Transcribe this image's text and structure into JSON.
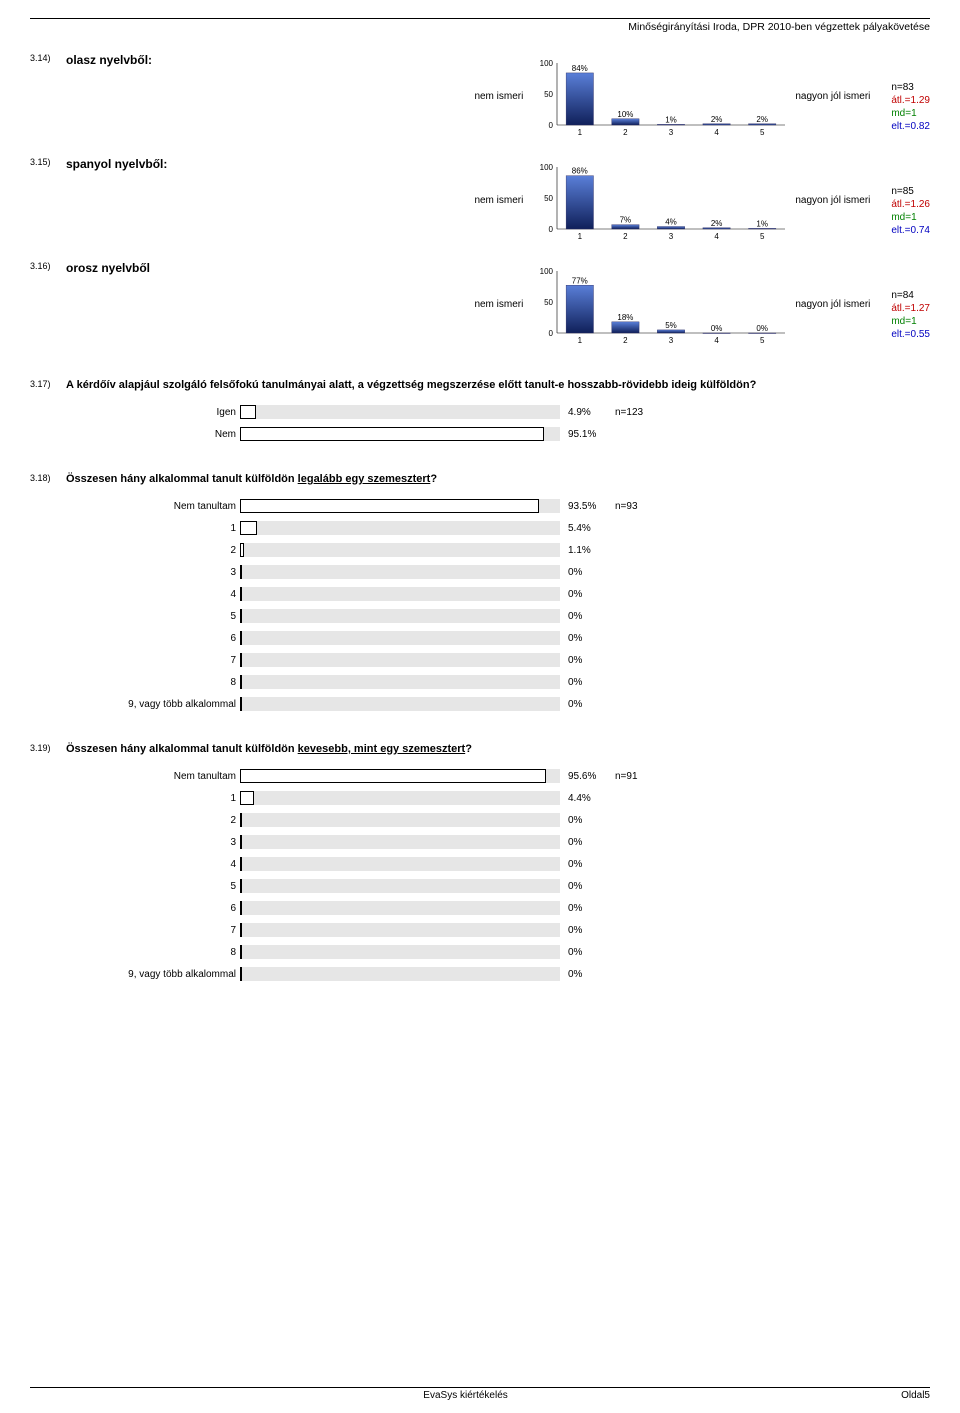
{
  "header": {
    "title": "Minőségirányítási Iroda, DPR 2010-ben végzettek pályakövetése"
  },
  "vertical_charts": [
    {
      "qnum": "3.14)",
      "title": "olasz nyelvből:",
      "left_label": "nem ismeri",
      "right_label": "nagyon jól ismeri",
      "bars": [
        {
          "x": "1",
          "pct": 84,
          "label": "84%"
        },
        {
          "x": "2",
          "pct": 10,
          "label": "10%"
        },
        {
          "x": "3",
          "pct": 1,
          "label": "1%"
        },
        {
          "x": "4",
          "pct": 2,
          "label": "2%"
        },
        {
          "x": "5",
          "pct": 2,
          "label": "2%"
        }
      ],
      "stats": {
        "n": "n=83",
        "atl": "átl.=1.29",
        "md": "md=1",
        "elt": "elt.=0.82"
      }
    },
    {
      "qnum": "3.15)",
      "title": "spanyol nyelvből:",
      "left_label": "nem ismeri",
      "right_label": "nagyon jól ismeri",
      "bars": [
        {
          "x": "1",
          "pct": 86,
          "label": "86%"
        },
        {
          "x": "2",
          "pct": 7,
          "label": "7%"
        },
        {
          "x": "3",
          "pct": 4,
          "label": "4%"
        },
        {
          "x": "4",
          "pct": 2,
          "label": "2%"
        },
        {
          "x": "5",
          "pct": 1,
          "label": "1%"
        }
      ],
      "stats": {
        "n": "n=85",
        "atl": "átl.=1.26",
        "md": "md=1",
        "elt": "elt.=0.74"
      }
    },
    {
      "qnum": "3.16)",
      "title": "orosz nyelvből",
      "left_label": "nem ismeri",
      "right_label": "nagyon jól ismeri",
      "bars": [
        {
          "x": "1",
          "pct": 77,
          "label": "77%"
        },
        {
          "x": "2",
          "pct": 18,
          "label": "18%"
        },
        {
          "x": "3",
          "pct": 5,
          "label": "5%"
        },
        {
          "x": "4",
          "pct": 0,
          "label": "0%"
        },
        {
          "x": "5",
          "pct": 0,
          "label": "0%"
        }
      ],
      "stats": {
        "n": "n=84",
        "atl": "átl.=1.27",
        "md": "md=1",
        "elt": "elt.=0.55"
      }
    }
  ],
  "chart_style": {
    "bar_top_color": "#5a7fd8",
    "bar_bottom_color": "#10205a",
    "grid_color": "#bfbfbf",
    "axis_font_size": 8,
    "y_ticks": [
      0,
      50,
      100
    ]
  },
  "q317": {
    "qnum": "3.17)",
    "title": "A kérdőív alapjául szolgáló felsőfokú tanulmányai alatt, a végzettség megszerzése előtt tanult-e hosszabb-rövidebb ideig külföldön?",
    "rows": [
      {
        "label": "Igen",
        "pct": 4.9,
        "pct_label": "4.9%",
        "n": "n=123"
      },
      {
        "label": "Nem",
        "pct": 95.1,
        "pct_label": "95.1%",
        "n": ""
      }
    ]
  },
  "q318": {
    "qnum": "3.18)",
    "title_pre": "Összesen hány alkalommal tanult külföldön ",
    "title_underline": "legalább egy szemesztert",
    "title_post": "?",
    "rows": [
      {
        "label": "Nem tanultam",
        "pct": 93.5,
        "pct_label": "93.5%",
        "n": "n=93"
      },
      {
        "label": "1",
        "pct": 5.4,
        "pct_label": "5.4%",
        "n": ""
      },
      {
        "label": "2",
        "pct": 1.1,
        "pct_label": "1.1%",
        "n": ""
      },
      {
        "label": "3",
        "pct": 0,
        "pct_label": "0%",
        "n": ""
      },
      {
        "label": "4",
        "pct": 0,
        "pct_label": "0%",
        "n": ""
      },
      {
        "label": "5",
        "pct": 0,
        "pct_label": "0%",
        "n": ""
      },
      {
        "label": "6",
        "pct": 0,
        "pct_label": "0%",
        "n": ""
      },
      {
        "label": "7",
        "pct": 0,
        "pct_label": "0%",
        "n": ""
      },
      {
        "label": "8",
        "pct": 0,
        "pct_label": "0%",
        "n": ""
      },
      {
        "label": "9, vagy több alkalommal",
        "pct": 0,
        "pct_label": "0%",
        "n": ""
      }
    ]
  },
  "q319": {
    "qnum": "3.19)",
    "title_pre": "Összesen hány alkalommal tanult külföldön ",
    "title_underline": "kevesebb, mint egy szemesztert",
    "title_post": "?",
    "rows": [
      {
        "label": "Nem tanultam",
        "pct": 95.6,
        "pct_label": "95.6%",
        "n": "n=91"
      },
      {
        "label": "1",
        "pct": 4.4,
        "pct_label": "4.4%",
        "n": ""
      },
      {
        "label": "2",
        "pct": 0,
        "pct_label": "0%",
        "n": ""
      },
      {
        "label": "3",
        "pct": 0,
        "pct_label": "0%",
        "n": ""
      },
      {
        "label": "4",
        "pct": 0,
        "pct_label": "0%",
        "n": ""
      },
      {
        "label": "5",
        "pct": 0,
        "pct_label": "0%",
        "n": ""
      },
      {
        "label": "6",
        "pct": 0,
        "pct_label": "0%",
        "n": ""
      },
      {
        "label": "7",
        "pct": 0,
        "pct_label": "0%",
        "n": ""
      },
      {
        "label": "8",
        "pct": 0,
        "pct_label": "0%",
        "n": ""
      },
      {
        "label": "9, vagy több alkalommal",
        "pct": 0,
        "pct_label": "0%",
        "n": ""
      }
    ]
  },
  "footer": {
    "left": "",
    "center": "EvaSys kiértékelés",
    "right": "Oldal5"
  }
}
